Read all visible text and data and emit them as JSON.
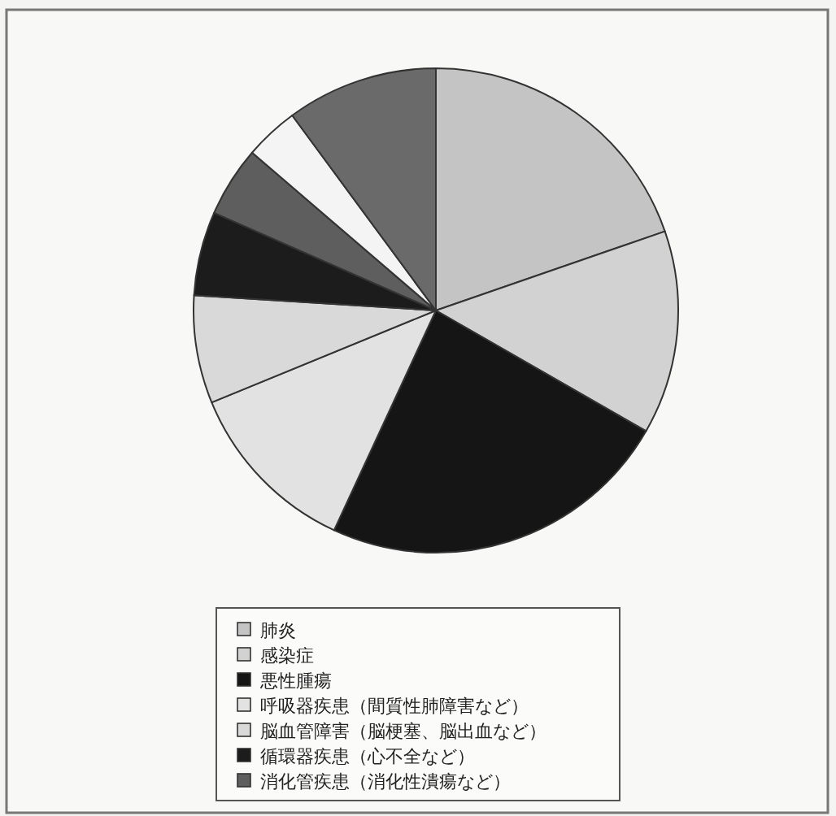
{
  "chart_data": {
    "type": "pie",
    "categories": [
      "肺炎",
      "感染症",
      "悪性腫瘍",
      "呼吸器疾患（間質性肺障害など）",
      "脳血管障害（脳梗塞、脳出血など）",
      "循環器疾患（心不全など）",
      "消化管疾患（消化性潰瘍など）",
      null,
      null
    ],
    "values": [
      19.7,
      13.6,
      23.6,
      11.9,
      7.2,
      5.6,
      4.7,
      3.6,
      10.1
    ],
    "colors": [
      "#c4c4c4",
      "#d2d2d2",
      "#151515",
      "#e2e2e2",
      "#d9d9d9",
      "#1c1c1c",
      "#5e5e5e",
      "#f4f4f4",
      "#6a6a6a"
    ],
    "legend": "bottom"
  }
}
